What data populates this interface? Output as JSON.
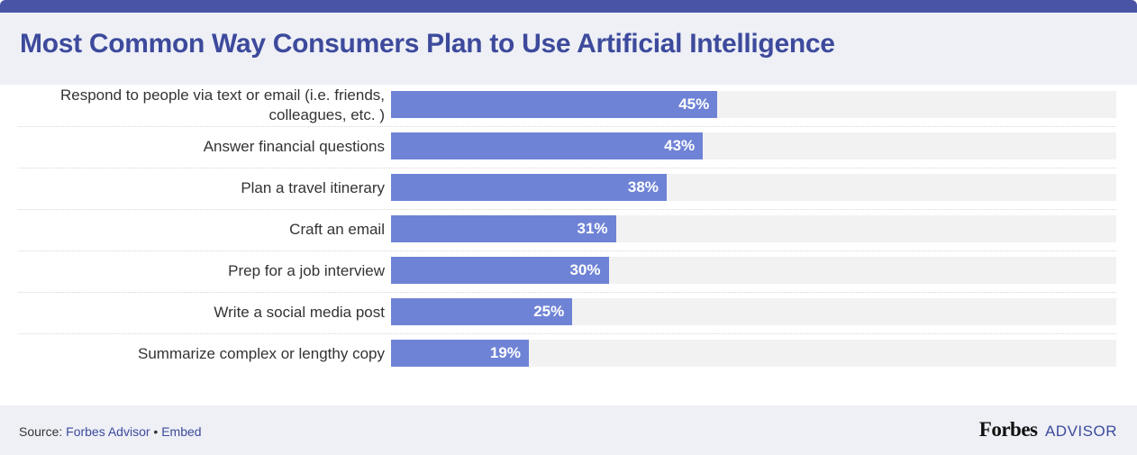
{
  "title": "Most Common Way Consumers Plan to Use Artificial Intelligence",
  "colors": {
    "topbar": "#4a54a6",
    "title": "#3d4a9c",
    "bar": "#6f83d6",
    "track": "#f2f2f2",
    "header_bg": "#eef0f6"
  },
  "chart_data": {
    "type": "bar",
    "orientation": "horizontal",
    "title": "Most Common Way Consumers Plan to Use Artificial Intelligence",
    "categories": [
      "Respond to people via text or email (i.e. friends, colleagues, etc. )",
      "Answer financial questions",
      "Plan a travel itinerary",
      "Craft an email",
      "Prep for a job interview",
      "Write a social media post",
      "Summarize complex or lengthy copy"
    ],
    "values": [
      45,
      43,
      38,
      31,
      30,
      25,
      19
    ],
    "value_labels": [
      "45%",
      "43%",
      "38%",
      "31%",
      "30%",
      "25%",
      "19%"
    ],
    "xlim": [
      0,
      100
    ],
    "unit": "%",
    "grid": false,
    "legend": "none"
  },
  "footer": {
    "source_prefix": "Source:",
    "source_link": "Forbes Advisor",
    "separator": "•",
    "embed_link": "Embed",
    "brand_name": "Forbes",
    "brand_suffix": "ADVISOR"
  }
}
